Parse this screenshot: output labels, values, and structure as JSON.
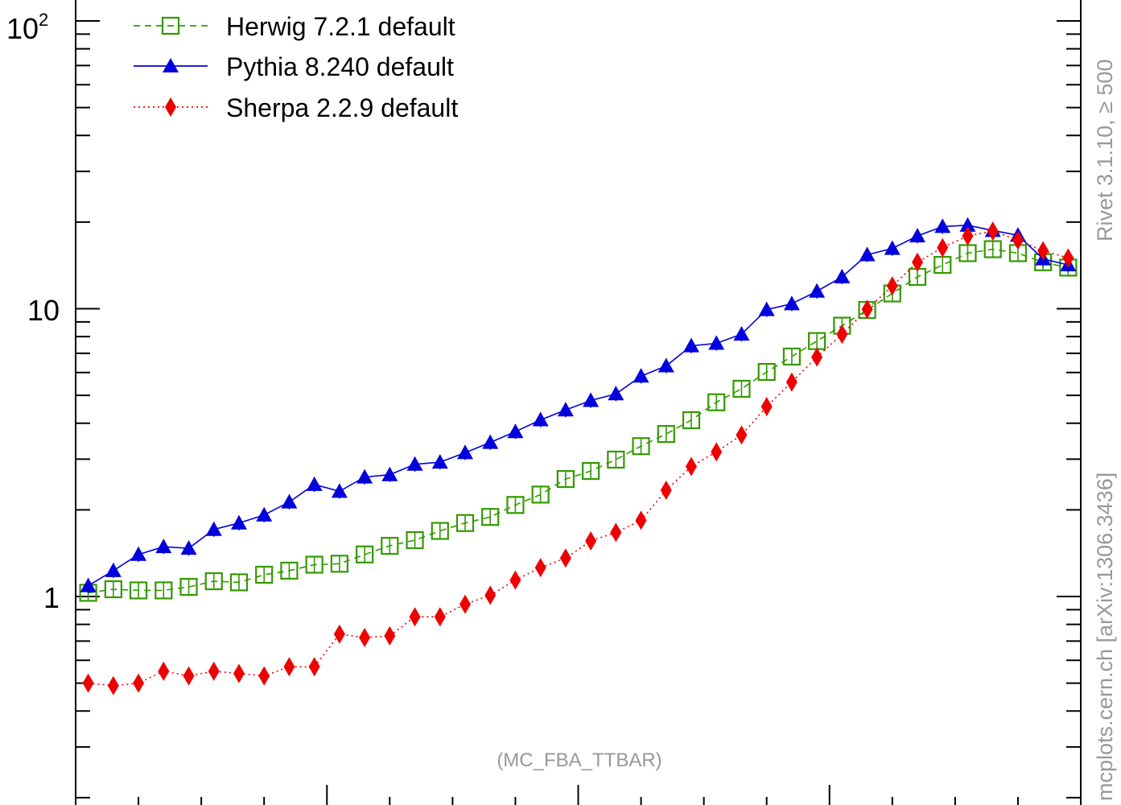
{
  "chart_data": {
    "type": "line",
    "y_scale": "log",
    "ylim": [
      0.2,
      100
    ],
    "xlim": [
      0,
      80
    ],
    "y_tick_labels": {
      "t100": {
        "base": "10",
        "exp": "2"
      },
      "t10": "10",
      "t1": "1"
    },
    "legend_position": "top-left",
    "annotation": "(MC_FBA_TTBAR)",
    "side_label_top": "Rivet 3.1.10,  ≥ 500",
    "side_label_bottom": "mcplots.cern.ch [arXiv:1306.3436]",
    "colors": {
      "herwig": "#339900",
      "pythia": "#0000dd",
      "sherpa": "#ee0000",
      "side_text": "#999999"
    },
    "x": [
      1,
      3,
      5,
      7,
      9,
      11,
      13,
      15,
      17,
      19,
      21,
      23,
      25,
      27,
      29,
      31,
      33,
      35,
      37,
      39,
      41,
      43,
      45,
      47,
      49,
      51,
      53,
      55,
      57,
      59,
      61,
      63,
      65,
      67,
      69,
      71,
      73,
      75,
      77,
      79
    ],
    "series": [
      {
        "name": "Herwig 7.2.1 default",
        "style": "dashed",
        "marker": "open-square",
        "color": "#339900",
        "values": [
          1.03,
          1.06,
          1.05,
          1.05,
          1.08,
          1.13,
          1.12,
          1.19,
          1.23,
          1.29,
          1.3,
          1.4,
          1.5,
          1.57,
          1.69,
          1.8,
          1.89,
          2.08,
          2.26,
          2.56,
          2.73,
          2.99,
          3.33,
          3.67,
          4.1,
          4.73,
          5.27,
          6.03,
          6.82,
          7.72,
          8.73,
          9.9,
          11.3,
          12.9,
          14.2,
          15.6,
          16.1,
          15.6,
          14.5,
          13.9
        ]
      },
      {
        "name": "Pythia 8.240 default",
        "style": "solid",
        "marker": "filled-triangle",
        "color": "#0000dd",
        "values": [
          1.09,
          1.23,
          1.4,
          1.49,
          1.47,
          1.71,
          1.8,
          1.92,
          2.13,
          2.45,
          2.32,
          2.6,
          2.65,
          2.88,
          2.93,
          3.16,
          3.43,
          3.74,
          4.11,
          4.45,
          4.8,
          5.06,
          5.83,
          6.33,
          7.43,
          7.58,
          8.16,
          9.93,
          10.4,
          11.5,
          12.9,
          15.4,
          16.2,
          17.9,
          19.3,
          19.5,
          18.7,
          18.0,
          14.9,
          14.2
        ]
      },
      {
        "name": "Sherpa 2.2.9 default",
        "style": "dotted",
        "marker": "filled-diamond",
        "color": "#ee0000",
        "values": [
          0.5,
          0.49,
          0.5,
          0.55,
          0.53,
          0.55,
          0.54,
          0.53,
          0.57,
          0.57,
          0.74,
          0.72,
          0.73,
          0.85,
          0.85,
          0.94,
          1.01,
          1.14,
          1.26,
          1.36,
          1.56,
          1.67,
          1.84,
          2.34,
          2.83,
          3.18,
          3.64,
          4.57,
          5.56,
          6.79,
          8.15,
          9.95,
          12.0,
          14.5,
          16.3,
          17.9,
          18.6,
          17.3,
          15.9,
          15.0
        ]
      }
    ]
  }
}
